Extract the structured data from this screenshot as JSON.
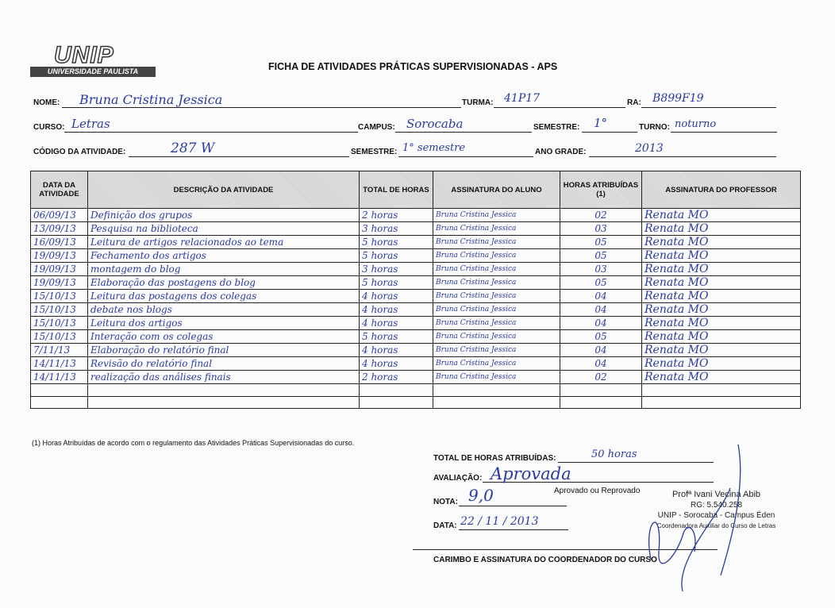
{
  "logo": {
    "name": "UNIP",
    "subtitle": "UNIVERSIDADE PAULISTA"
  },
  "title": "FICHA DE ATIVIDADES PRÁTICAS SUPERVISIONADAS - APS",
  "fields": {
    "nome": {
      "label": "NOME:",
      "value": "Bruna Cristina Jessica"
    },
    "turma": {
      "label": "TURMA:",
      "value": "41P17"
    },
    "ra": {
      "label": "RA:",
      "value": "B899F19"
    },
    "curso": {
      "label": "CURSO:",
      "value": "Letras"
    },
    "campus": {
      "label": "CAMPUS:",
      "value": "Sorocaba"
    },
    "semestre": {
      "label": "SEMESTRE:",
      "value": "1°"
    },
    "turno": {
      "label": "TURNO:",
      "value": "noturno"
    },
    "codigo": {
      "label": "CÓDIGO DA ATIVIDADE:",
      "value": "287 W"
    },
    "semestre2": {
      "label": "SEMESTRE:",
      "value": "1° semestre"
    },
    "ano_grade": {
      "label": "ANO GRADE:",
      "value": "2013"
    }
  },
  "table": {
    "headers": [
      "DATA DA ATIVIDADE",
      "DESCRIÇÃO DA ATIVIDADE",
      "TOTAL DE HORAS",
      "ASSINATURA DO ALUNO",
      "HORAS ATRIBUÍDAS (1)",
      "ASSINATURA DO PROFESSOR"
    ],
    "rows": [
      [
        "06/09/13",
        "Definição dos grupos",
        "2 horas",
        "Bruna Cristina Jessica",
        "02",
        "Renata MO"
      ],
      [
        "13/09/13",
        "Pesquisa na biblioteca",
        "3 horas",
        "Bruna Cristina Jessica",
        "03",
        "Renata MO"
      ],
      [
        "16/09/13",
        "Leitura de artigos relacionados ao tema",
        "5 horas",
        "Bruna Cristina Jessica",
        "05",
        "Renata MO"
      ],
      [
        "19/09/13",
        "Fechamento dos artigos",
        "5 horas",
        "Bruna Cristina Jessica",
        "05",
        "Renata MO"
      ],
      [
        "19/09/13",
        "montagem do blog",
        "3 horas",
        "Bruna Cristina Jessica",
        "03",
        "Renata MO"
      ],
      [
        "19/09/13",
        "Elaboração das postagens do blog",
        "5 horas",
        "Bruna Cristina Jessica",
        "05",
        "Renata MO"
      ],
      [
        "15/10/13",
        "Leitura das postagens dos colegas",
        "4 horas",
        "Bruna Cristina Jessica",
        "04",
        "Renata MO"
      ],
      [
        "15/10/13",
        "debate nos blogs",
        "4 horas",
        "Bruna Cristina Jessica",
        "04",
        "Renata MO"
      ],
      [
        "15/10/13",
        "Leitura dos artigos",
        "4 horas",
        "Bruna Cristina Jessica",
        "04",
        "Renata MO"
      ],
      [
        "15/10/13",
        "Interação com os colegas",
        "5 horas",
        "Bruna Cristina Jessica",
        "05",
        "Renata MO"
      ],
      [
        "7/11/13",
        "Elaboração do relatório final",
        "4 horas",
        "Bruna Cristina Jessica",
        "04",
        "Renata MO"
      ],
      [
        "14/11/13",
        "Revisão do relatório final",
        "4 horas",
        "Bruna Cristina Jessica",
        "04",
        "Renata MO"
      ],
      [
        "14/11/13",
        "realização das análises finais",
        "2 horas",
        "Bruna Cristina Jessica",
        "02",
        "Renata MO"
      ],
      [
        "",
        "",
        "",
        "",
        "",
        ""
      ],
      [
        "",
        "",
        "",
        "",
        "",
        ""
      ]
    ]
  },
  "footnote": "(1) Horas Atribuídas de acordo com o regulamento das Atividades Práticas Supervisionadas do curso.",
  "summary": {
    "total_label": "TOTAL DE HORAS ATRIBUÍDAS:",
    "total_value": "50 horas",
    "avaliacao_label": "AVALIAÇÃO:",
    "avaliacao_value": "Aprovada",
    "avaliacao_hint": "Aprovado ou Reprovado",
    "nota_label": "NOTA:",
    "nota_value": "9,0",
    "data_label": "DATA:",
    "data_value": "22 / 11 / 2013",
    "coord_label": "CARIMBO E ASSINATURA DO COORDENADOR DO CURSO"
  },
  "stamp": [
    "Profª Ivani Vecina Abib",
    "RG: 5.540.258",
    "UNIP - Sorocaba - Campus Éden",
    "Coordenadora Auxiliar do Curso de Letras"
  ]
}
